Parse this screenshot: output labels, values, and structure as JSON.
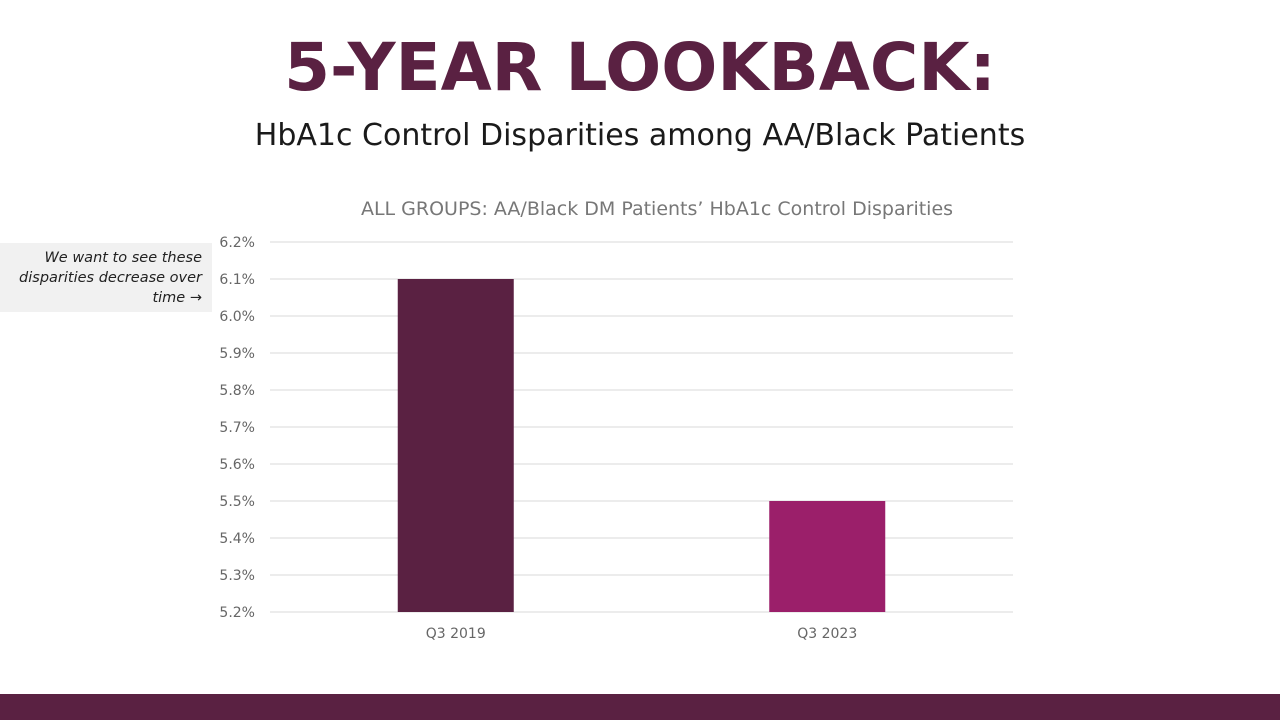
{
  "slide": {
    "title": "5-YEAR LOOKBACK:",
    "subtitle": "HbA1c Control Disparities among AA/Black Patients",
    "note": "We want to see these disparities decrease over time →"
  },
  "colors": {
    "brand": "#5a2142",
    "accent": "#9b1f6a",
    "grid": "#d9d9d9"
  },
  "chart_data": {
    "type": "bar",
    "title": "ALL GROUPS: AA/Black DM Patients’ HbA1c Control Disparities",
    "categories": [
      "Q3 2019",
      "Q3 2023"
    ],
    "values": [
      6.1,
      5.5
    ],
    "value_unit": "%",
    "bar_colors": [
      "#5a2142",
      "#9b1f6a"
    ],
    "ylim": [
      5.2,
      6.2
    ],
    "yticks": [
      "5.2%",
      "5.3%",
      "5.4%",
      "5.5%",
      "5.6%",
      "5.7%",
      "5.8%",
      "5.9%",
      "6.0%",
      "6.1%",
      "6.2%"
    ],
    "xlabel": "",
    "ylabel": "",
    "grid": true,
    "legend": "none"
  }
}
